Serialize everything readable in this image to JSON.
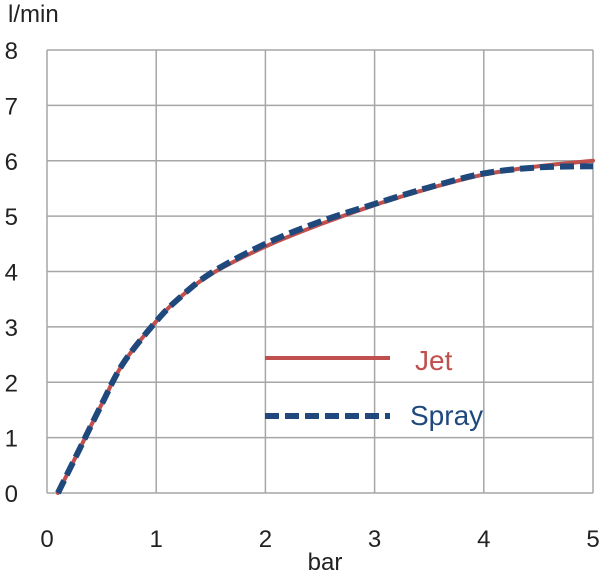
{
  "chart_data": {
    "type": "line",
    "xlabel": "bar",
    "ylabel": "l/min",
    "xlim": [
      0,
      5
    ],
    "ylim": [
      0,
      8
    ],
    "x_ticks": [
      "0",
      "1",
      "2",
      "3",
      "4",
      "5"
    ],
    "y_ticks": [
      "0",
      "1",
      "2",
      "3",
      "4",
      "5",
      "6",
      "7",
      "8"
    ],
    "grid": true,
    "legend_position": "center-right",
    "series": [
      {
        "name": "Jet",
        "color": "#c0504d",
        "style": "solid",
        "x": [
          0.1,
          0.3,
          0.5,
          0.7,
          1.0,
          1.2,
          1.5,
          2.0,
          2.5,
          3.0,
          3.5,
          4.0,
          4.5,
          5.0
        ],
        "y": [
          0.0,
          0.8,
          1.6,
          2.35,
          3.1,
          3.5,
          3.95,
          4.45,
          4.85,
          5.2,
          5.5,
          5.75,
          5.9,
          6.0
        ]
      },
      {
        "name": "Spray",
        "color": "#1f497d",
        "style": "dashed",
        "x": [
          0.1,
          0.3,
          0.5,
          0.7,
          1.0,
          1.2,
          1.5,
          2.0,
          2.5,
          3.0,
          3.5,
          4.0,
          4.5,
          5.0
        ],
        "y": [
          0.0,
          0.8,
          1.6,
          2.35,
          3.1,
          3.5,
          3.97,
          4.5,
          4.9,
          5.22,
          5.52,
          5.77,
          5.88,
          5.9
        ]
      }
    ]
  }
}
